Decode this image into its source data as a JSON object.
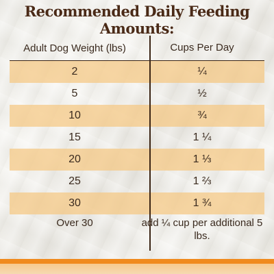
{
  "title": "Recommended Daily Feeding Amounts:",
  "table": {
    "headers": [
      "Adult Dog Weight (lbs)",
      "Cups Per Day"
    ],
    "rows": [
      {
        "weight": "2",
        "cups": "¼"
      },
      {
        "weight": "5",
        "cups": "½"
      },
      {
        "weight": "10",
        "cups": "¾"
      },
      {
        "weight": "15",
        "cups": "1 ¼"
      },
      {
        "weight": "20",
        "cups": "1 ⅓"
      },
      {
        "weight": "25",
        "cups": "1 ⅔"
      },
      {
        "weight": "30",
        "cups": "1 ¾"
      },
      {
        "weight": "Over 30",
        "cups": "add ¼ cup per additional 5 lbs."
      }
    ]
  },
  "colors": {
    "title": "#4a2a17",
    "row_shade": "#f5c882",
    "accent_stripe": "#f08a1e"
  }
}
